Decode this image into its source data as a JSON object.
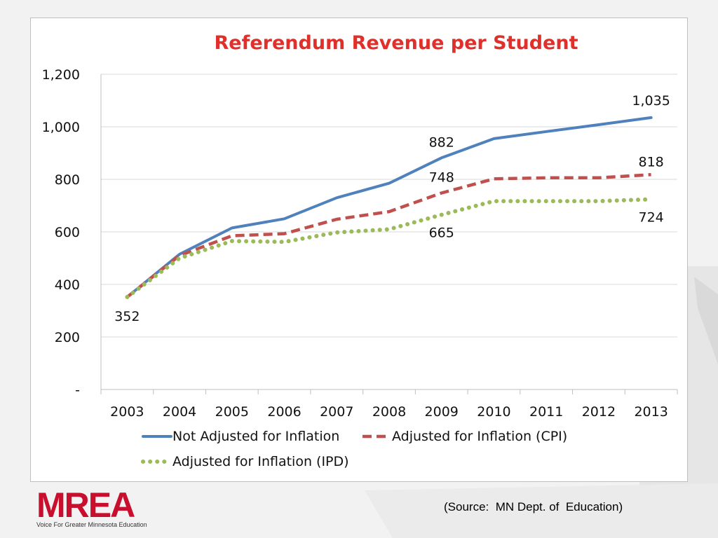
{
  "chart_data": {
    "type": "line",
    "title": "Referendum Revenue per Student",
    "categories": [
      "2003",
      "2004",
      "2005",
      "2006",
      "2007",
      "2008",
      "2009",
      "2010",
      "2011",
      "2012",
      "2013"
    ],
    "y_ticks": [
      "-",
      "200",
      "400",
      "600",
      "800",
      "1,000",
      "1,200"
    ],
    "ylim": [
      0,
      1200
    ],
    "grid": true,
    "legend_position": "bottom",
    "series": [
      {
        "name": "Not Adjusted for Inflation",
        "color": "#4f81bd",
        "style": "solid",
        "values": [
          352,
          515,
          615,
          650,
          730,
          785,
          882,
          955,
          982,
          1008,
          1035
        ]
      },
      {
        "name": "Adjusted for Inflation (CPI)",
        "color": "#c0504d",
        "style": "dashed",
        "values": [
          352,
          510,
          585,
          593,
          648,
          677,
          748,
          802,
          806,
          806,
          818
        ]
      },
      {
        "name": "Adjusted for Inflation (IPD)",
        "color": "#9bbb59",
        "style": "dotted",
        "values": [
          352,
          500,
          565,
          562,
          598,
          610,
          665,
          717,
          717,
          717,
          724
        ]
      }
    ],
    "annotations": [
      {
        "text": "352",
        "series": 0,
        "index": 0
      },
      {
        "text": "882",
        "series": 0,
        "index": 6
      },
      {
        "text": "1,035",
        "series": 0,
        "index": 10
      },
      {
        "text": "748",
        "series": 1,
        "index": 6
      },
      {
        "text": "818",
        "series": 1,
        "index": 10
      },
      {
        "text": "665",
        "series": 2,
        "index": 6
      },
      {
        "text": "724",
        "series": 2,
        "index": 10
      }
    ]
  },
  "source_note": "(Source:  MN Dept. of  Education)",
  "logo": {
    "text": "MREA",
    "tagline": "Voice For Greater Minnesota Education",
    "color": "#c8102e"
  }
}
